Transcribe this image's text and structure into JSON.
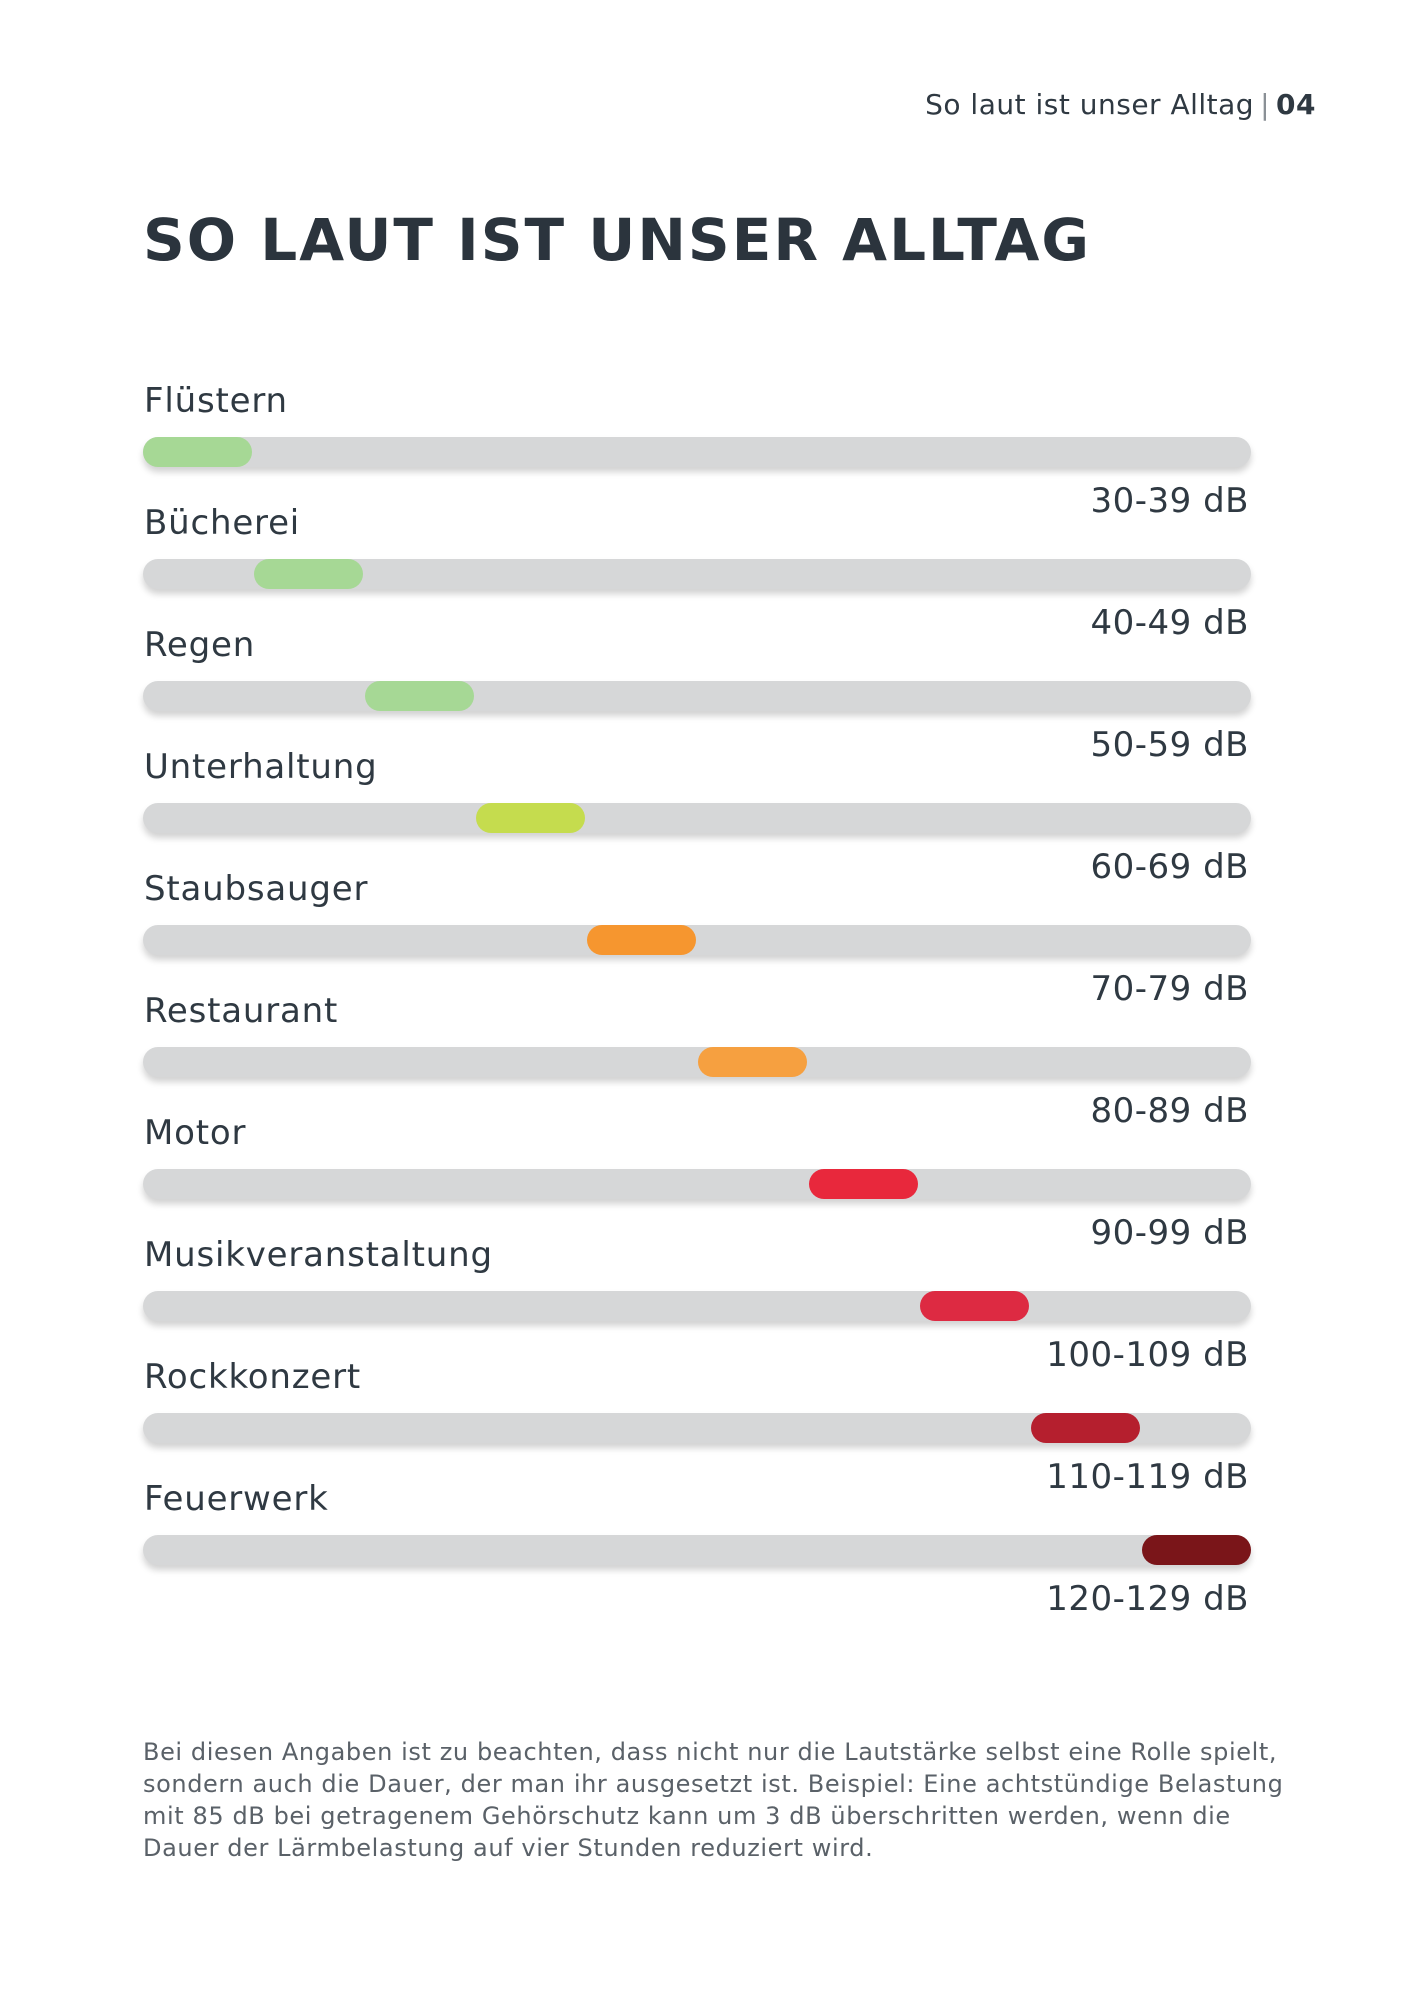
{
  "header": {
    "section": "So laut ist unser Alltag",
    "separator": "|",
    "page_number": "04"
  },
  "title": "SO LAUT IST UNSER ALLTAG",
  "chart_data": {
    "type": "bar",
    "title": "SO LAUT IST UNSER ALLTAG",
    "unit": "dB",
    "xlim": [
      30,
      129
    ],
    "categories": [
      "Flüstern",
      "Bücherei",
      "Regen",
      "Unterhaltung",
      "Staubsauger",
      "Restaurant",
      "Motor",
      "Musikveranstaltung",
      "Rockkonzert",
      "Feuerwerk"
    ],
    "ranges": [
      [
        30,
        39
      ],
      [
        40,
        49
      ],
      [
        50,
        59
      ],
      [
        60,
        69
      ],
      [
        70,
        79
      ],
      [
        80,
        89
      ],
      [
        90,
        99
      ],
      [
        100,
        109
      ],
      [
        110,
        119
      ],
      [
        120,
        129
      ]
    ],
    "range_labels": [
      "30-39 dB",
      "40-49 dB",
      "50-59 dB",
      "60-69 dB",
      "70-79 dB",
      "80-89 dB",
      "90-99 dB",
      "100-109 dB",
      "110-119 dB",
      "120-129 dB"
    ],
    "colors": [
      "#a6d895",
      "#a6d895",
      "#a6d895",
      "#c5dc4e",
      "#f6962f",
      "#f6a040",
      "#e8283c",
      "#dd2a42",
      "#b51f2e",
      "#7a1519"
    ],
    "track_color": "#d6d7d8"
  },
  "footnote": "Bei diesen Angaben ist zu beachten, dass nicht nur die Lautstärke selbst eine Rolle spielt, sondern auch die Dauer, der man ihr ausgesetzt ist. Beispiel: Eine achtstündige Belastung mit 85 dB bei getragenem Gehörschutz kann um 3 dB überschritten werden, wenn die Dauer der Lärmbelastung auf vier Stunden reduziert wird."
}
